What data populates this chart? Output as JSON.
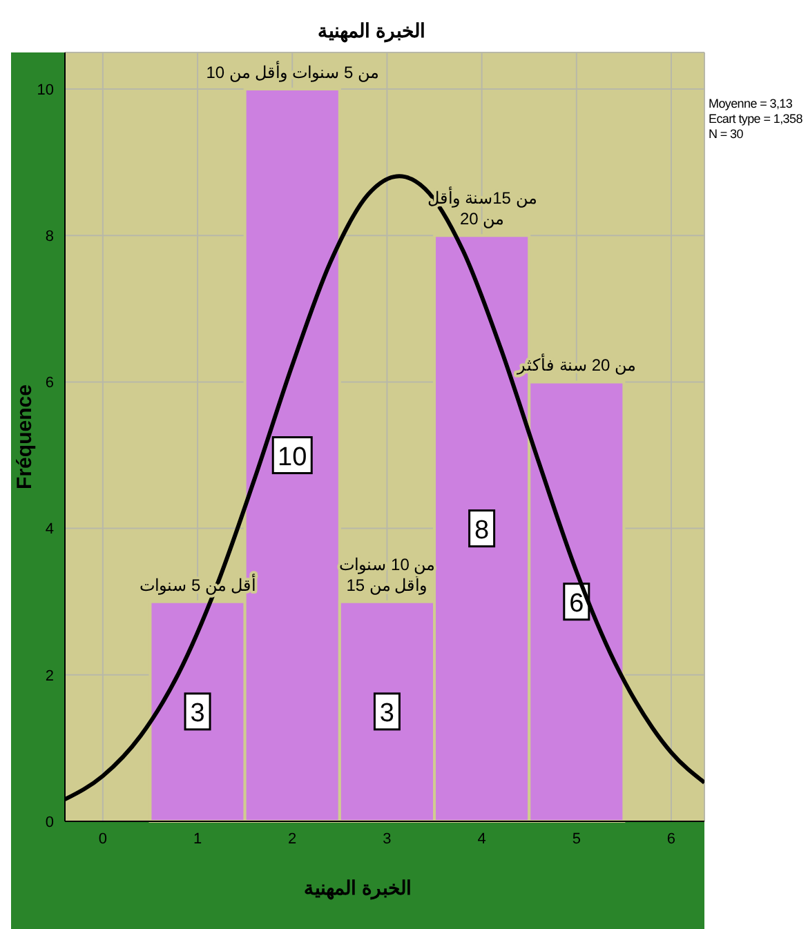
{
  "chart_data": {
    "type": "histogram",
    "title": "الخبرة المهنية",
    "xlabel": "الخبرة المهنية",
    "ylabel": "Fréquence",
    "bins": [
      0.5,
      1.5,
      2.5,
      3.5,
      4.5,
      5.5
    ],
    "values": [
      3,
      10,
      3,
      8,
      6
    ],
    "color": "#cc80e0",
    "value_labels": [
      "3",
      "10",
      "3",
      "8",
      "6"
    ],
    "series": [
      {
        "type": "line",
        "color": "#000000",
        "x": [
          -0.4,
          0,
          0.4,
          0.8,
          1.2,
          1.6,
          2.0,
          2.4,
          2.8,
          3.13,
          3.4,
          3.8,
          4.2,
          4.6,
          5.0,
          5.4,
          5.8,
          6.0,
          6.35
        ],
        "values": [
          0.3,
          0.62,
          1.17,
          2.02,
          3.21,
          4.67,
          6.23,
          7.63,
          8.56,
          8.81,
          8.64,
          7.8,
          6.46,
          4.91,
          3.41,
          2.18,
          1.28,
          0.94,
          0.53
        ]
      }
    ],
    "annotations": [
      {
        "text": "أقل من 5 سنوات",
        "x": 1,
        "y": 3
      },
      {
        "text": "من 5 سنوات وأقل من 10",
        "x": 2,
        "y": 10
      },
      {
        "text": "من 10 سنوات وأقل من 15",
        "x": 3,
        "y": 3
      },
      {
        "text": "من 15سنة وأقل من 20",
        "x": 4,
        "y": 8
      },
      {
        "text": "من 20 سنة فأكثر",
        "x": 5,
        "y": 6
      },
      "Moyenne = 3,13",
      "Ecart type = 1,358",
      "N = 30"
    ],
    "xlim": [
      -0.4,
      6.35
    ],
    "xticks": [
      0,
      1,
      2,
      3,
      4,
      5,
      6
    ],
    "ylim": [
      0,
      10.5
    ],
    "yticks": [
      0,
      2,
      4,
      6,
      8,
      10
    ],
    "grid": true
  }
}
